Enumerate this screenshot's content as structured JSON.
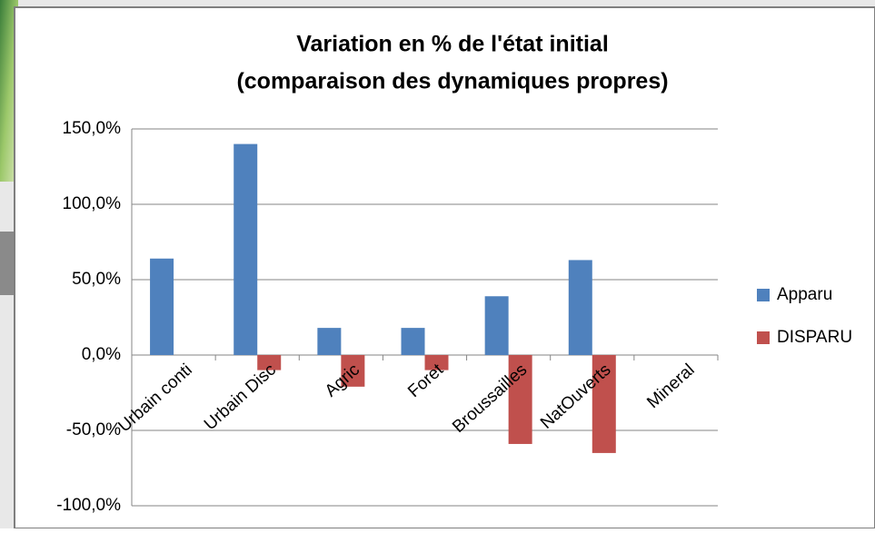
{
  "chart_data": {
    "type": "bar",
    "title": [
      "Variation en % de l'état initial",
      "(comparaison des dynamiques propres)"
    ],
    "categories": [
      "Urbain conti",
      "Urbain Disc",
      "Agric",
      "Foret",
      "Broussailles",
      "NatOuverts",
      "Mineral"
    ],
    "series": [
      {
        "name": "Apparu",
        "color": "#4f81bd",
        "values": [
          64,
          140,
          18,
          18,
          39,
          63,
          0
        ]
      },
      {
        "name": "DISPARU",
        "color": "#c0504d",
        "values": [
          0,
          -10,
          -21,
          -10,
          -59,
          -65,
          0
        ]
      }
    ],
    "ylim": [
      -100,
      150
    ],
    "yticks": [
      {
        "value": -100,
        "label": "-100,0%"
      },
      {
        "value": -50,
        "label": "-50,0%"
      },
      {
        "value": 0,
        "label": "0,0%"
      },
      {
        "value": 50,
        "label": "50,0%"
      },
      {
        "value": 100,
        "label": "100,0%"
      },
      {
        "value": 150,
        "label": "150,0%"
      }
    ],
    "grid": true,
    "legend": "right"
  }
}
